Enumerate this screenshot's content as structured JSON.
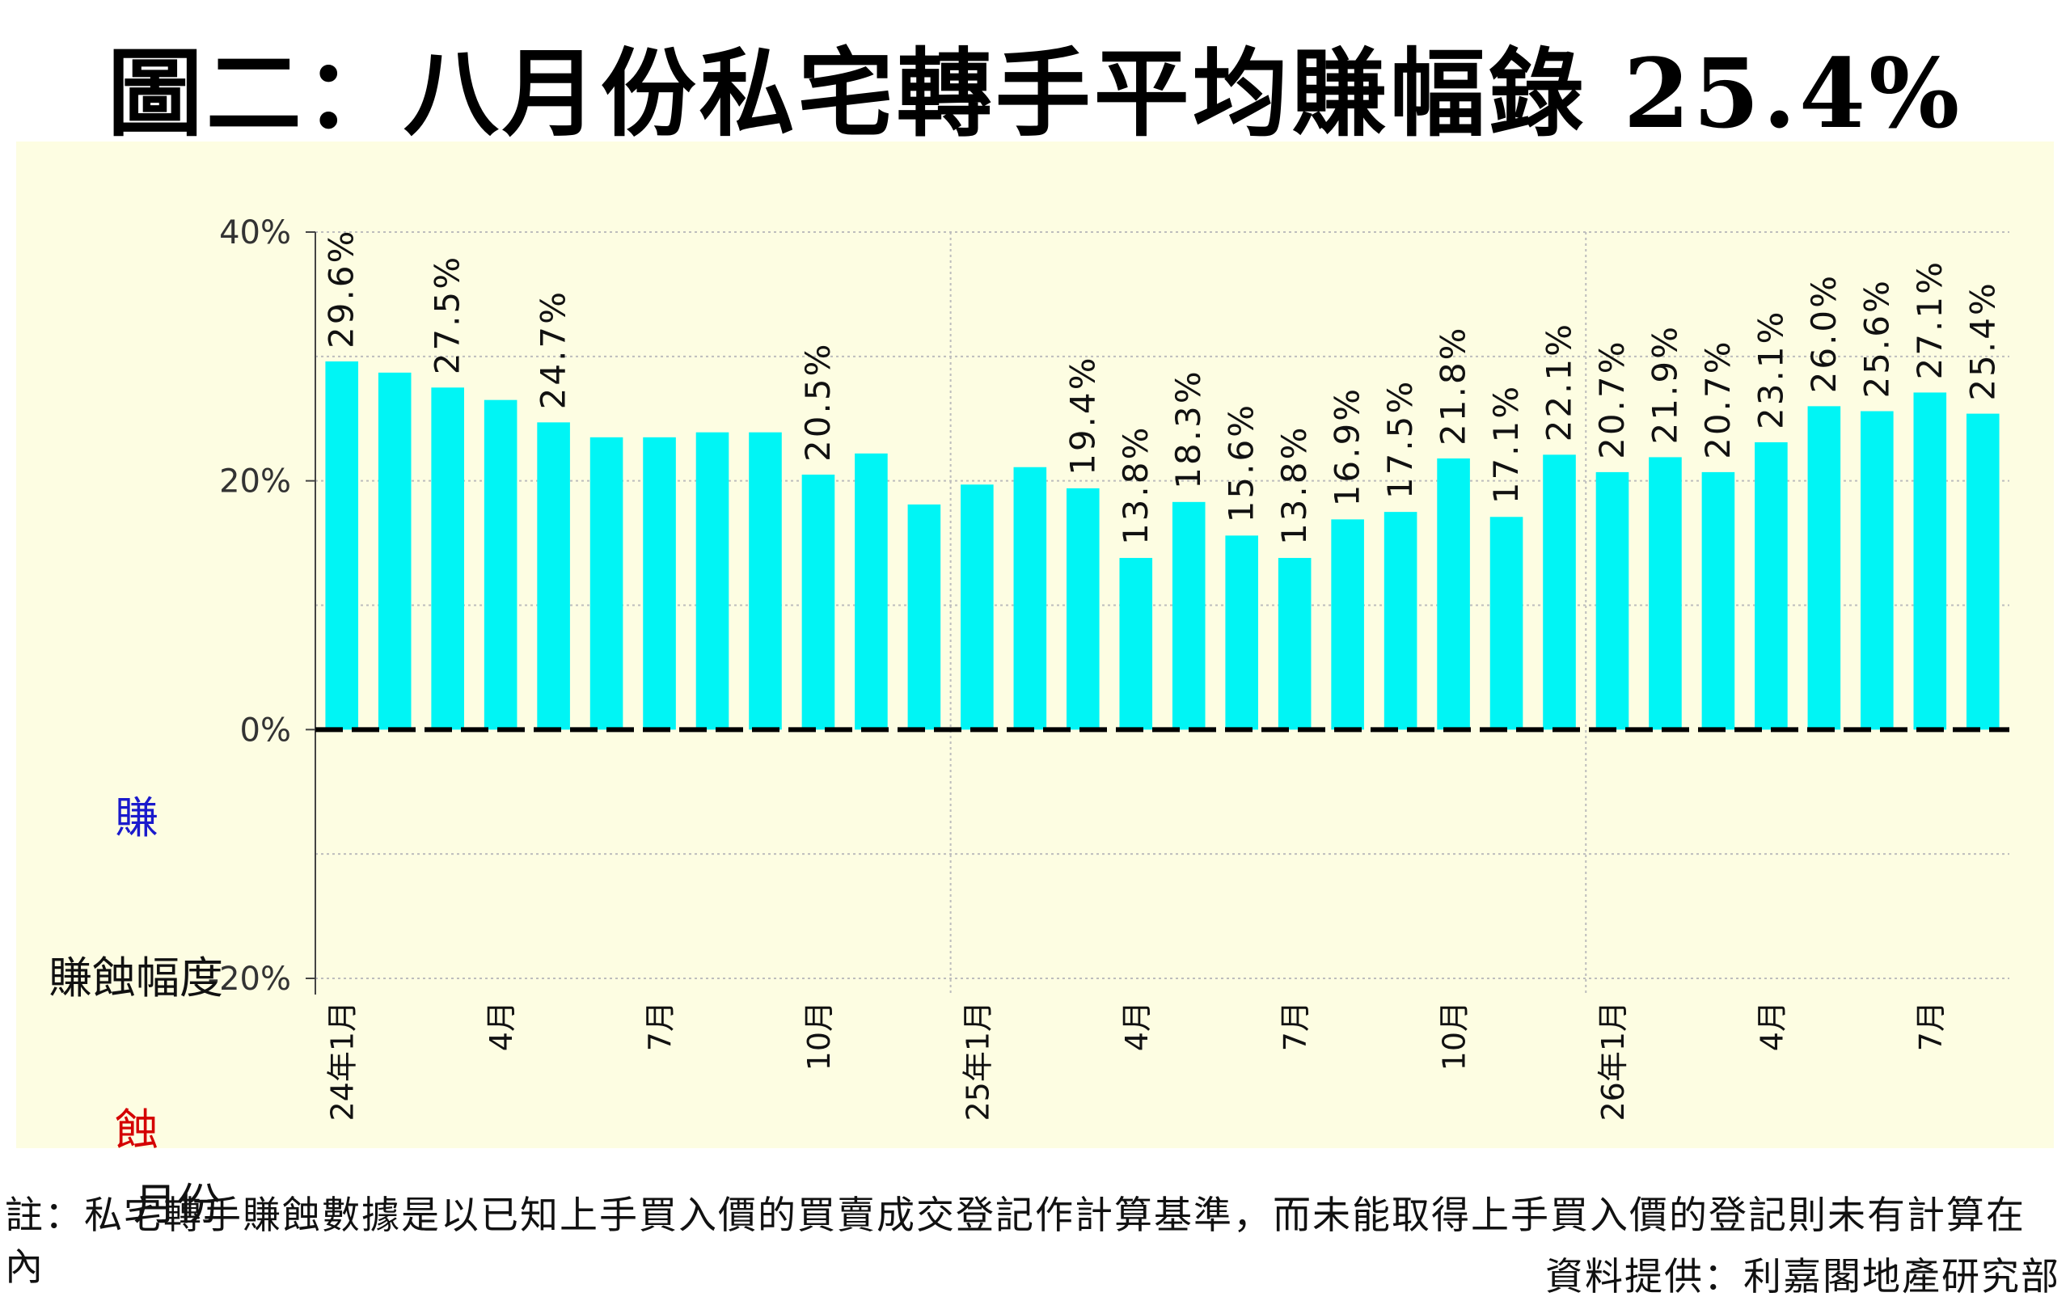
{
  "title": "圖二：八月份私宅轉手平均賺幅錄 25.4%",
  "side_labels": {
    "earn": "賺",
    "loss": "蝕",
    "ylabel": "賺蝕幅度",
    "xlabel": "月份"
  },
  "note": "註：私宅轉手賺蝕數據是以已知上手買入價的買賣成交登記作計算基準，而未能取得上手買入價的登記則未有計算在內",
  "source": "資料提供：利嘉閣地產研究部",
  "chart_data": {
    "type": "bar",
    "ylim": [
      -20,
      40
    ],
    "y_ticks": [
      "40%",
      "20%",
      "0%",
      "-20%"
    ],
    "y_tick_values": [
      40,
      20,
      0,
      -20
    ],
    "bar_color": "#00f5f5",
    "plot_background": "#fdfde2",
    "categories": [
      "24年1月",
      "",
      "",
      "4月",
      "",
      "",
      "7月",
      "",
      "",
      "10月",
      "",
      "",
      "25年1月",
      "",
      "",
      "4月",
      "",
      "",
      "7月",
      "",
      "",
      "10月",
      "",
      "",
      "26年1月",
      "",
      "",
      "4月",
      "",
      "",
      "7月",
      ""
    ],
    "values": [
      29.6,
      28.7,
      27.5,
      26.5,
      24.7,
      23.5,
      23.5,
      23.9,
      23.9,
      20.5,
      22.2,
      18.1,
      19.7,
      21.1,
      19.4,
      13.8,
      18.3,
      15.6,
      13.8,
      16.9,
      17.5,
      21.8,
      17.1,
      22.1,
      20.7,
      21.9,
      20.7,
      23.1,
      26.0,
      25.6,
      27.1,
      25.4
    ],
    "data_labels": [
      "29.6%",
      "",
      "27.5%",
      "",
      "24.7%",
      "",
      "",
      "",
      "",
      "20.5%",
      "",
      "",
      "",
      "",
      "19.4%",
      "13.8%",
      "18.3%",
      "15.6%",
      "13.8%",
      "16.9%",
      "17.5%",
      "21.8%",
      "17.1%",
      "22.1%",
      "20.7%",
      "21.9%",
      "20.7%",
      "23.1%",
      "26.0%",
      "25.6%",
      "27.1%",
      "25.4%"
    ]
  }
}
